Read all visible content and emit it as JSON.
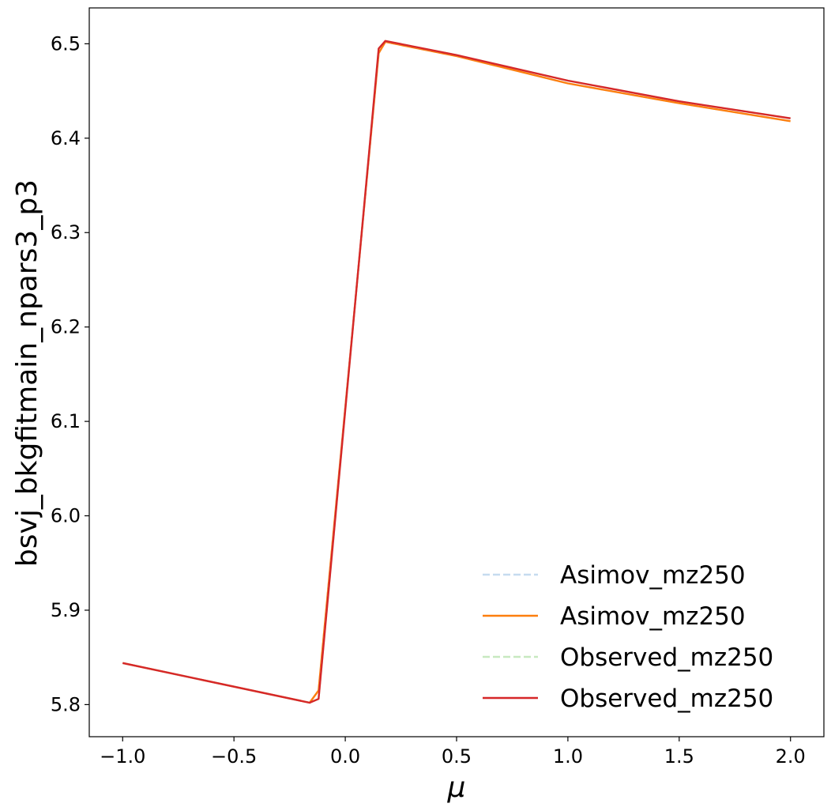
{
  "chart_data": {
    "type": "line",
    "xlabel": "μ",
    "ylabel": "bsvj_bkgfitmain_npars3_p3",
    "xlim": [
      -1.15,
      2.15
    ],
    "ylim": [
      5.766,
      6.538
    ],
    "xticks": [
      -1.0,
      -0.5,
      0.0,
      0.5,
      1.0,
      1.5,
      2.0
    ],
    "xtick_labels": [
      "−1.0",
      "−0.5",
      "0.0",
      "0.5",
      "1.0",
      "1.5",
      "2.0"
    ],
    "yticks": [
      5.8,
      5.9,
      6.0,
      6.1,
      6.2,
      6.3,
      6.4,
      6.5
    ],
    "ytick_labels": [
      "5.8",
      "5.9",
      "6.0",
      "6.1",
      "6.2",
      "6.3",
      "6.4",
      "6.5"
    ],
    "grid": false,
    "legend_position": "lower right",
    "series": [
      {
        "name": "Asimov_mz250",
        "color": "#c6dbef",
        "dashed": true,
        "x": [
          -1.0,
          -0.16,
          -0.12,
          0.15,
          0.18,
          0.5,
          1.0,
          1.5,
          2.0
        ],
        "y": [
          5.844,
          5.802,
          5.815,
          6.49,
          6.502,
          6.487,
          6.458,
          6.437,
          6.418
        ]
      },
      {
        "name": "Asimov_mz250",
        "color": "#fd7f0e",
        "dashed": false,
        "x": [
          -1.0,
          -0.16,
          -0.12,
          0.15,
          0.18,
          0.5,
          1.0,
          1.5,
          2.0
        ],
        "y": [
          5.844,
          5.802,
          5.815,
          6.49,
          6.502,
          6.487,
          6.458,
          6.437,
          6.418
        ]
      },
      {
        "name": "Observed_mz250",
        "color": "#c7e9c0",
        "dashed": true,
        "x": [
          -1.0,
          -0.16,
          -0.12,
          0.15,
          0.18,
          0.5,
          1.0,
          1.5,
          2.0
        ],
        "y": [
          5.844,
          5.802,
          5.806,
          6.495,
          6.503,
          6.488,
          6.461,
          6.439,
          6.421
        ]
      },
      {
        "name": "Observed_mz250",
        "color": "#d62728",
        "dashed": false,
        "x": [
          -1.0,
          -0.16,
          -0.12,
          0.15,
          0.18,
          0.5,
          1.0,
          1.5,
          2.0
        ],
        "y": [
          5.844,
          5.802,
          5.806,
          6.495,
          6.503,
          6.488,
          6.461,
          6.439,
          6.421
        ]
      }
    ]
  }
}
